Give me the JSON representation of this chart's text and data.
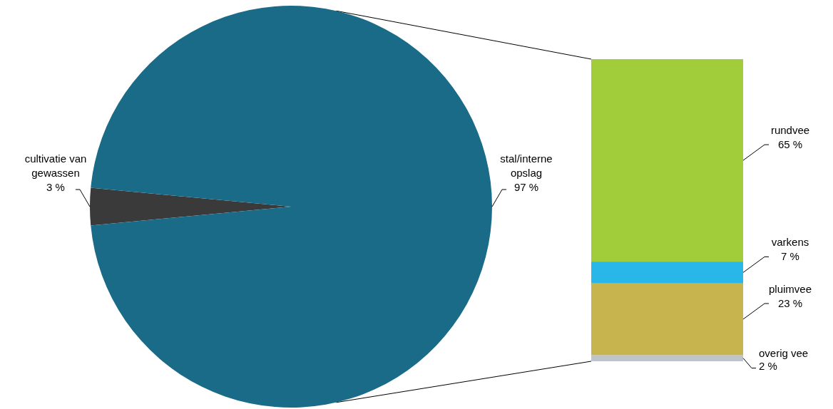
{
  "chart_data": [
    {
      "type": "pie",
      "categories": [
        "cultivatie van gewassen",
        "stal/interne opslag"
      ],
      "values": [
        3,
        97
      ],
      "colors": [
        "#3a3a3a",
        "#1a6b87"
      ],
      "value_labels": [
        "3 %",
        "97 %"
      ]
    },
    {
      "type": "bar",
      "stacked": true,
      "categories": [
        null
      ],
      "series": [
        {
          "name": "overig vee",
          "color": "#c0c4c8",
          "values": [
            2
          ],
          "value_labels": [
            "2 %"
          ]
        },
        {
          "name": "pluimvee",
          "color": "#c8b44f",
          "values": [
            23
          ],
          "value_labels": [
            "23 %"
          ]
        },
        {
          "name": "varkens",
          "color": "#29b6e8",
          "values": [
            7
          ],
          "value_labels": [
            "7 %"
          ]
        },
        {
          "name": "rundvee",
          "color": "#a2cd3a",
          "values": [
            65
          ],
          "value_labels": [
            "65 %"
          ]
        }
      ]
    }
  ]
}
